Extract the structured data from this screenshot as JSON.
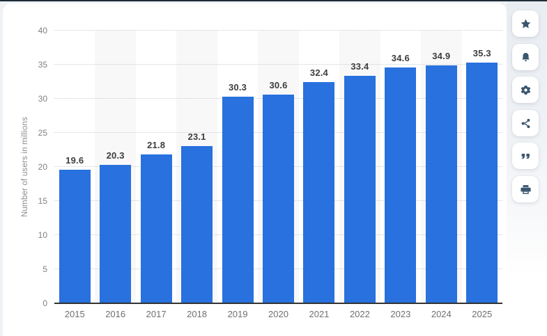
{
  "page": {
    "background": "#eff2f5",
    "top_border_color": "#1e2b39"
  },
  "chart_data": {
    "type": "bar",
    "title": "",
    "categories": [
      "2015",
      "2016",
      "2017",
      "2018",
      "2019",
      "2020",
      "2021",
      "2022",
      "2023",
      "2024",
      "2025"
    ],
    "values": [
      19.6,
      20.3,
      21.8,
      23.1,
      30.3,
      30.6,
      32.4,
      33.4,
      34.6,
      34.9,
      35.3
    ],
    "xlabel": "",
    "ylabel": "Number of users in millions",
    "ylim": [
      0,
      40
    ],
    "yticks": [
      0,
      5,
      10,
      15,
      20,
      25,
      30,
      35,
      40
    ],
    "grid": "horizontal-dotted",
    "legend": "none",
    "bar_color": "#2871de",
    "striped_columns": [
      1,
      3,
      5,
      7,
      9
    ],
    "stripe_color": "#f8f8f9",
    "value_label_color": "#3d3d3d",
    "axis_label_color": "#6f6f6f"
  },
  "toolbar": {
    "icon_color": "#3a556e",
    "buttons": [
      {
        "id": "favorite",
        "icon": "star-icon"
      },
      {
        "id": "alerts",
        "icon": "bell-icon"
      },
      {
        "id": "settings",
        "icon": "gear-icon"
      },
      {
        "id": "share",
        "icon": "share-icon"
      },
      {
        "id": "citation",
        "icon": "quote-icon"
      },
      {
        "id": "print",
        "icon": "printer-icon"
      }
    ]
  }
}
